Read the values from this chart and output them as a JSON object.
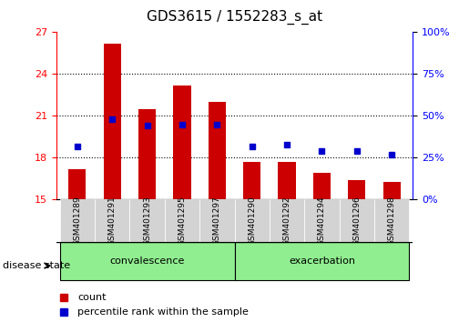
{
  "title": "GDS3615 / 1552283_s_at",
  "samples": [
    "GSM401289",
    "GSM401291",
    "GSM401293",
    "GSM401295",
    "GSM401297",
    "GSM401290",
    "GSM401292",
    "GSM401294",
    "GSM401296",
    "GSM401298"
  ],
  "bar_values": [
    17.2,
    26.2,
    21.5,
    23.2,
    22.0,
    17.7,
    17.7,
    16.9,
    16.4,
    16.3
  ],
  "percentile_values": [
    32,
    48,
    44,
    45,
    45,
    32,
    33,
    29,
    29,
    27
  ],
  "groups": [
    {
      "label": "convalescence",
      "indices": [
        0,
        1,
        2,
        3,
        4
      ]
    },
    {
      "label": "exacerbation",
      "indices": [
        5,
        6,
        7,
        8,
        9
      ]
    }
  ],
  "ylim_left": [
    15,
    27
  ],
  "ylim_right": [
    0,
    100
  ],
  "yticks_left": [
    15,
    18,
    21,
    24,
    27
  ],
  "yticks_right": [
    0,
    25,
    50,
    75,
    100
  ],
  "bar_color": "#cc0000",
  "dot_color": "#0000cc",
  "bar_bottom": 15,
  "group_bg_color": "#90ee90",
  "tick_label_bg": "#d3d3d3",
  "legend_count_label": "count",
  "legend_pct_label": "percentile rank within the sample",
  "disease_state_label": "disease state"
}
